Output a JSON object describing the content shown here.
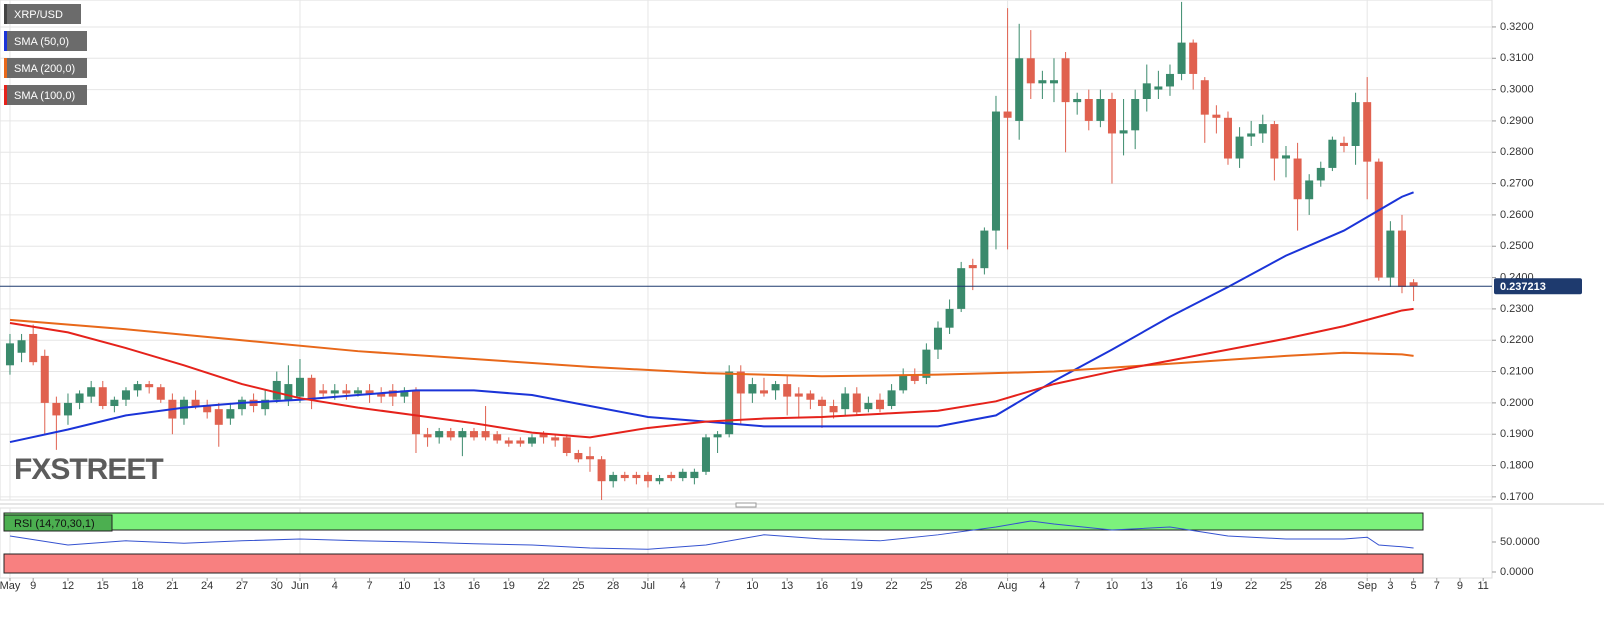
{
  "chart_data": {
    "type": "candlestick",
    "title": "XRP/USD",
    "up_color": "#3a8a6c",
    "down_color": "#e0614f",
    "open": [
      0.212,
      0.216,
      0.222,
      0.215,
      0.2,
      0.196,
      0.2,
      0.202,
      0.205,
      0.199,
      0.201,
      0.204,
      0.206,
      0.205,
      0.201,
      0.195,
      0.201,
      0.199,
      0.198,
      0.195,
      0.198,
      0.201,
      0.198,
      0.201,
      0.201,
      0.202,
      0.208,
      0.204,
      0.203,
      0.204,
      0.203,
      0.204,
      0.203,
      0.204,
      0.202,
      0.204,
      0.19,
      0.189,
      0.191,
      0.189,
      0.191,
      0.191,
      0.19,
      0.188,
      0.188,
      0.187,
      0.19,
      0.189,
      0.189,
      0.184,
      0.183,
      0.182,
      0.175,
      0.177,
      0.177,
      0.177,
      0.175,
      0.177,
      0.176,
      0.176,
      0.178,
      0.189,
      0.19,
      0.21,
      0.203,
      0.204,
      0.204,
      0.206,
      0.203,
      0.203,
      0.201,
      0.199,
      0.198,
      0.203,
      0.198,
      0.201,
      0.199,
      0.204,
      0.209,
      0.208,
      0.217,
      0.224,
      0.23,
      0.244,
      0.243,
      0.255,
      0.293,
      0.29,
      0.31,
      0.302,
      0.302,
      0.31,
      0.296,
      0.297,
      0.29,
      0.297,
      0.286,
      0.287,
      0.297,
      0.3,
      0.301,
      0.305,
      0.315,
      0.303,
      0.292,
      0.291,
      0.278,
      0.285,
      0.286,
      0.289,
      0.278,
      0.278,
      0.265,
      0.271,
      0.275,
      0.283,
      0.282,
      0.296,
      0.277,
      0.24,
      0.255,
      0.2385
    ],
    "high": [
      0.222,
      0.222,
      0.225,
      0.217,
      0.202,
      0.203,
      0.204,
      0.207,
      0.207,
      0.202,
      0.205,
      0.207,
      0.207,
      0.206,
      0.203,
      0.202,
      0.204,
      0.201,
      0.2,
      0.2,
      0.202,
      0.203,
      0.204,
      0.21,
      0.212,
      0.214,
      0.209,
      0.206,
      0.206,
      0.206,
      0.205,
      0.206,
      0.205,
      0.206,
      0.205,
      0.205,
      0.192,
      0.192,
      0.192,
      0.192,
      0.192,
      0.199,
      0.191,
      0.189,
      0.189,
      0.19,
      0.191,
      0.19,
      0.19,
      0.185,
      0.186,
      0.183,
      0.178,
      0.178,
      0.178,
      0.178,
      0.177,
      0.178,
      0.179,
      0.179,
      0.19,
      0.191,
      0.212,
      0.212,
      0.208,
      0.208,
      0.207,
      0.209,
      0.205,
      0.204,
      0.202,
      0.201,
      0.205,
      0.205,
      0.202,
      0.203,
      0.206,
      0.211,
      0.211,
      0.219,
      0.226,
      0.233,
      0.245,
      0.246,
      0.256,
      0.298,
      0.326,
      0.321,
      0.319,
      0.306,
      0.31,
      0.312,
      0.299,
      0.3,
      0.3,
      0.299,
      0.297,
      0.3,
      0.308,
      0.306,
      0.308,
      0.328,
      0.316,
      0.304,
      0.295,
      0.293,
      0.288,
      0.29,
      0.292,
      0.29,
      0.282,
      0.283,
      0.273,
      0.277,
      0.285,
      0.285,
      0.299,
      0.304,
      0.278,
      0.258,
      0.26,
      0.2395
    ],
    "low": [
      0.209,
      0.213,
      0.212,
      0.19,
      0.185,
      0.193,
      0.198,
      0.2,
      0.198,
      0.197,
      0.199,
      0.202,
      0.203,
      0.2,
      0.19,
      0.193,
      0.198,
      0.195,
      0.186,
      0.193,
      0.196,
      0.197,
      0.196,
      0.2,
      0.199,
      0.2,
      0.198,
      0.202,
      0.201,
      0.201,
      0.202,
      0.2,
      0.2,
      0.199,
      0.2,
      0.184,
      0.186,
      0.187,
      0.188,
      0.183,
      0.188,
      0.188,
      0.187,
      0.186,
      0.186,
      0.186,
      0.187,
      0.186,
      0.183,
      0.181,
      0.178,
      0.169,
      0.173,
      0.175,
      0.174,
      0.173,
      0.174,
      0.175,
      0.175,
      0.174,
      0.177,
      0.184,
      0.189,
      0.193,
      0.2,
      0.202,
      0.201,
      0.196,
      0.195,
      0.198,
      0.192,
      0.195,
      0.196,
      0.196,
      0.197,
      0.197,
      0.198,
      0.203,
      0.206,
      0.206,
      0.214,
      0.222,
      0.229,
      0.236,
      0.241,
      0.249,
      0.249,
      0.284,
      0.297,
      0.297,
      0.296,
      0.28,
      0.292,
      0.287,
      0.288,
      0.27,
      0.279,
      0.281,
      0.293,
      0.297,
      0.298,
      0.303,
      0.3,
      0.283,
      0.286,
      0.276,
      0.275,
      0.282,
      0.283,
      0.271,
      0.272,
      0.255,
      0.26,
      0.269,
      0.274,
      0.28,
      0.276,
      0.265,
      0.239,
      0.237,
      0.235,
      0.2325
    ],
    "close": [
      0.219,
      0.22,
      0.213,
      0.2,
      0.196,
      0.2,
      0.203,
      0.205,
      0.199,
      0.201,
      0.204,
      0.206,
      0.205,
      0.201,
      0.195,
      0.201,
      0.199,
      0.197,
      0.193,
      0.198,
      0.201,
      0.199,
      0.201,
      0.207,
      0.206,
      0.208,
      0.201,
      0.203,
      0.204,
      0.203,
      0.204,
      0.203,
      0.202,
      0.202,
      0.204,
      0.19,
      0.189,
      0.191,
      0.189,
      0.191,
      0.189,
      0.189,
      0.188,
      0.187,
      0.187,
      0.189,
      0.189,
      0.188,
      0.184,
      0.182,
      0.182,
      0.175,
      0.177,
      0.176,
      0.176,
      0.175,
      0.176,
      0.176,
      0.178,
      0.178,
      0.189,
      0.19,
      0.21,
      0.203,
      0.206,
      0.203,
      0.206,
      0.202,
      0.202,
      0.201,
      0.199,
      0.197,
      0.203,
      0.197,
      0.2,
      0.198,
      0.204,
      0.209,
      0.207,
      0.217,
      0.224,
      0.23,
      0.243,
      0.243,
      0.255,
      0.293,
      0.291,
      0.31,
      0.302,
      0.303,
      0.303,
      0.296,
      0.297,
      0.29,
      0.297,
      0.286,
      0.287,
      0.297,
      0.302,
      0.301,
      0.305,
      0.315,
      0.305,
      0.292,
      0.291,
      0.278,
      0.285,
      0.286,
      0.289,
      0.278,
      0.279,
      0.265,
      0.271,
      0.275,
      0.284,
      0.282,
      0.296,
      0.277,
      0.24,
      0.255,
      0.237,
      0.237213
    ],
    "last_price": 0.237213,
    "xlim": [
      -0.86,
      127.76
    ],
    "xticks": [
      {
        "value": 0,
        "label": "May"
      },
      {
        "value": 2,
        "label": "9"
      },
      {
        "value": 5,
        "label": "12"
      },
      {
        "value": 8,
        "label": "15"
      },
      {
        "value": 11,
        "label": "18"
      },
      {
        "value": 14,
        "label": "21"
      },
      {
        "value": 17,
        "label": "24"
      },
      {
        "value": 20,
        "label": "27"
      },
      {
        "value": 23,
        "label": "30"
      },
      {
        "value": 25,
        "label": "Jun"
      },
      {
        "value": 28,
        "label": "4"
      },
      {
        "value": 31,
        "label": "7"
      },
      {
        "value": 34,
        "label": "10"
      },
      {
        "value": 37,
        "label": "13"
      },
      {
        "value": 40,
        "label": "16"
      },
      {
        "value": 43,
        "label": "19"
      },
      {
        "value": 46,
        "label": "22"
      },
      {
        "value": 49,
        "label": "25"
      },
      {
        "value": 52,
        "label": "28"
      },
      {
        "value": 55,
        "label": "Jul"
      },
      {
        "value": 58,
        "label": "4"
      },
      {
        "value": 61,
        "label": "7"
      },
      {
        "value": 64,
        "label": "10"
      },
      {
        "value": 67,
        "label": "13"
      },
      {
        "value": 70,
        "label": "16"
      },
      {
        "value": 73,
        "label": "19"
      },
      {
        "value": 76,
        "label": "22"
      },
      {
        "value": 79,
        "label": "25"
      },
      {
        "value": 82,
        "label": "28"
      },
      {
        "value": 86,
        "label": "Aug"
      },
      {
        "value": 89,
        "label": "4"
      },
      {
        "value": 92,
        "label": "7"
      },
      {
        "value": 95,
        "label": "10"
      },
      {
        "value": 98,
        "label": "13"
      },
      {
        "value": 101,
        "label": "16"
      },
      {
        "value": 104,
        "label": "19"
      },
      {
        "value": 107,
        "label": "22"
      },
      {
        "value": 110,
        "label": "25"
      },
      {
        "value": 113,
        "label": "28"
      },
      {
        "value": 117,
        "label": "Sep"
      },
      {
        "value": 119,
        "label": "3"
      },
      {
        "value": 121,
        "label": "5"
      },
      {
        "value": 123,
        "label": "7"
      },
      {
        "value": 125,
        "label": "9"
      },
      {
        "value": 127,
        "label": "11"
      }
    ],
    "ylim": [
      0.169,
      0.3286
    ],
    "yticks": [
      {
        "value": 0.17,
        "label": "0.1700"
      },
      {
        "value": 0.18,
        "label": "0.1800"
      },
      {
        "value": 0.19,
        "label": "0.1900"
      },
      {
        "value": 0.2,
        "label": "0.2000"
      },
      {
        "value": 0.21,
        "label": "0.2100"
      },
      {
        "value": 0.22,
        "label": "0.2200"
      },
      {
        "value": 0.23,
        "label": "0.2300"
      },
      {
        "value": 0.24,
        "label": "0.2400"
      },
      {
        "value": 0.25,
        "label": "0.2500"
      },
      {
        "value": 0.26,
        "label": "0.2600"
      },
      {
        "value": 0.27,
        "label": "0.2700"
      },
      {
        "value": 0.28,
        "label": "0.2800"
      },
      {
        "value": 0.29,
        "label": "0.2900"
      },
      {
        "value": 0.3,
        "label": "0.3000"
      },
      {
        "value": 0.31,
        "label": "0.3100"
      },
      {
        "value": 0.32,
        "label": "0.3200"
      }
    ],
    "grid": true,
    "overlays": [
      {
        "name": "SMA (50,0)",
        "color": "#1b34d8",
        "x": [
          0,
          5,
          10,
          15,
          20,
          25,
          30,
          35,
          40,
          45,
          50,
          55,
          60,
          65,
          70,
          75,
          80,
          85,
          90,
          95,
          100,
          105,
          110,
          115,
          120,
          121
        ],
        "values": [
          0.1875,
          0.1915,
          0.196,
          0.1985,
          0.2,
          0.201,
          0.2025,
          0.204,
          0.204,
          0.2025,
          0.199,
          0.1955,
          0.194,
          0.1925,
          0.1925,
          0.1925,
          0.1925,
          0.196,
          0.207,
          0.217,
          0.2275,
          0.237,
          0.247,
          0.255,
          0.2658,
          0.2672
        ]
      },
      {
        "name": "SMA (200,0)",
        "color": "#e8681a",
        "x": [
          0,
          10,
          20,
          30,
          40,
          50,
          60,
          70,
          80,
          90,
          100,
          110,
          115,
          120,
          121
        ],
        "values": [
          0.2265,
          0.2235,
          0.22,
          0.2165,
          0.214,
          0.2115,
          0.2095,
          0.2085,
          0.209,
          0.21,
          0.2125,
          0.215,
          0.216,
          0.2155,
          0.215
        ]
      },
      {
        "name": "SMA (100,0)",
        "color": "#e5221b",
        "x": [
          0,
          5,
          10,
          15,
          20,
          25,
          30,
          35,
          40,
          45,
          50,
          55,
          60,
          65,
          70,
          75,
          80,
          85,
          90,
          95,
          100,
          105,
          110,
          115,
          120,
          121
        ],
        "values": [
          0.2255,
          0.2225,
          0.2175,
          0.212,
          0.206,
          0.2015,
          0.1985,
          0.196,
          0.1935,
          0.1905,
          0.189,
          0.192,
          0.194,
          0.195,
          0.1955,
          0.1965,
          0.1975,
          0.2005,
          0.206,
          0.21,
          0.2135,
          0.217,
          0.2205,
          0.2245,
          0.2295,
          0.23
        ]
      }
    ],
    "watermark": "FXSTREET",
    "rsi": {
      "name": "RSI (14,70,30,1)",
      "color": "#3552d0",
      "overbought": 70,
      "oversold": 30,
      "x": [
        0,
        5,
        10,
        15,
        20,
        25,
        30,
        35,
        40,
        45,
        50,
        55,
        60,
        65,
        70,
        75,
        80,
        85,
        88,
        90,
        95,
        100,
        105,
        110,
        115,
        117,
        118,
        120,
        121
      ],
      "values": [
        60,
        45,
        52,
        48,
        52,
        55,
        52,
        50,
        47,
        45,
        40,
        38,
        45,
        62,
        55,
        52,
        62,
        75,
        85,
        80,
        70,
        75,
        60,
        55,
        55,
        58,
        45,
        42,
        40
      ],
      "ylim": [
        -10,
        106.7
      ],
      "yticks": [
        {
          "value": 50,
          "label": "50.0000"
        },
        {
          "value": 0,
          "label": "0.0000"
        }
      ]
    }
  }
}
